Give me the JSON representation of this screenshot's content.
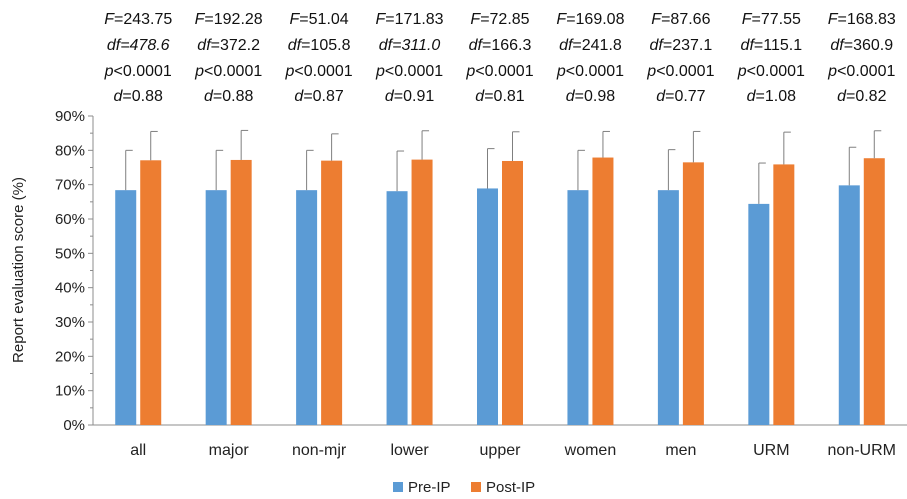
{
  "chart_data": {
    "type": "bar",
    "ylabel": "Report evaluation score (%)",
    "ylim": [
      0,
      90
    ],
    "yticks": [
      "0%",
      "10%",
      "20%",
      "30%",
      "40%",
      "50%",
      "60%",
      "70%",
      "80%",
      "90%"
    ],
    "categories": [
      "all",
      "major",
      "non-mjr",
      "lower",
      "upper",
      "women",
      "men",
      "URM",
      "non-URM"
    ],
    "series": [
      {
        "name": "Pre-IP",
        "color": "#5b9bd5",
        "values": [
          68.4,
          68.4,
          68.4,
          68.1,
          68.9,
          68.4,
          68.4,
          64.4,
          69.8
        ],
        "error": [
          11.6,
          11.6,
          11.6,
          11.7,
          11.6,
          11.6,
          11.8,
          11.9,
          11.1
        ]
      },
      {
        "name": "Post-IP",
        "color": "#ed7d31",
        "values": [
          77.1,
          77.2,
          77.0,
          77.3,
          76.9,
          77.9,
          76.5,
          75.9,
          77.7
        ],
        "error": [
          8.4,
          8.6,
          7.8,
          8.4,
          8.5,
          7.6,
          9.0,
          9.4,
          8.0
        ]
      }
    ],
    "stats": [
      {
        "F": "243.75",
        "df": "478.6",
        "df_italic": true,
        "p": "<0.0001",
        "d": "0.88"
      },
      {
        "F": "192.28",
        "df": "372.2",
        "df_italic": false,
        "p": "<0.0001",
        "d": "0.88"
      },
      {
        "F": "51.04",
        "df": "105.8",
        "df_italic": false,
        "p": "<0.0001",
        "d": "0.87"
      },
      {
        "F": "171.83",
        "df": "311.0",
        "df_italic": true,
        "p": "<0.0001",
        "d": "0.91"
      },
      {
        "F": "72.85",
        "df": "166.3",
        "df_italic": false,
        "p": "<0.0001",
        "d": "0.81"
      },
      {
        "F": "169.08",
        "df": "241.8",
        "df_italic": false,
        "p": "<0.0001",
        "d": "0.98"
      },
      {
        "F": "87.66",
        "df": "237.1",
        "df_italic": false,
        "p": "<0.0001",
        "d": "0.77"
      },
      {
        "F": "77.55",
        "df": "115.1",
        "df_italic": false,
        "p": "<0.0001",
        "d": "1.08"
      },
      {
        "F": "168.83",
        "df": "360.9",
        "df_italic": false,
        "p": "<0.0001",
        "d": "0.82"
      }
    ],
    "stat_labels": {
      "F": "F",
      "df": "df",
      "p": "p",
      "d": "d"
    },
    "grid": false,
    "legend_position": "bottom"
  }
}
